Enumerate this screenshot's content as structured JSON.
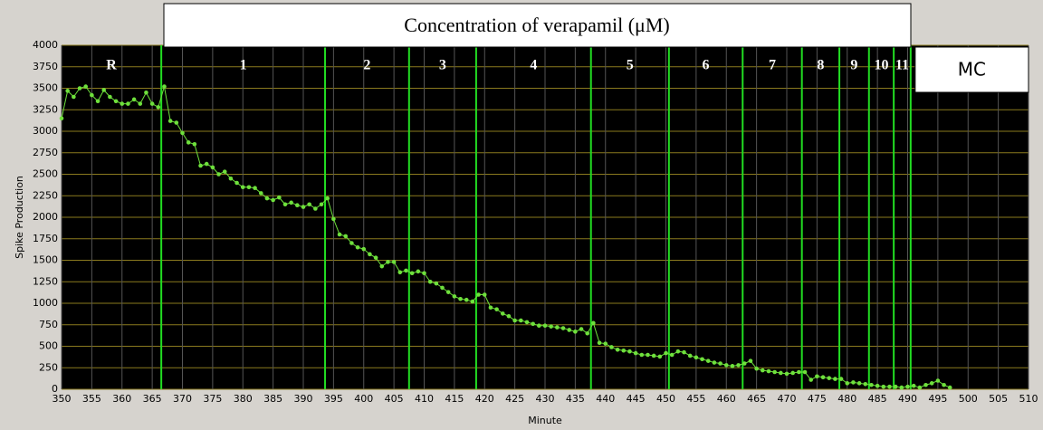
{
  "chart_data": {
    "type": "line",
    "title": "Concentration of verapamil (μM)",
    "x_label": "Minute",
    "y_label": "Spike Production",
    "xlim": [
      350,
      510
    ],
    "ylim": [
      0,
      4000
    ],
    "xticks": [
      350,
      355,
      360,
      365,
      370,
      375,
      380,
      385,
      390,
      395,
      400,
      405,
      410,
      415,
      420,
      425,
      430,
      435,
      440,
      445,
      450,
      455,
      460,
      465,
      470,
      475,
      480,
      485,
      490,
      495,
      500,
      505,
      510
    ],
    "yticks": [
      0,
      250,
      500,
      750,
      1000,
      1250,
      1500,
      1750,
      2000,
      2250,
      2500,
      2750,
      3000,
      3250,
      3500,
      3750,
      4000
    ],
    "grid": true,
    "color": "#6ee03c",
    "boundary_color": "#22dd22",
    "phase_boundaries": [
      366.5,
      393.6,
      407.5,
      418.6,
      437.6,
      450.5,
      462.7,
      472.5,
      478.7,
      483.6,
      487.7,
      490.5
    ],
    "phase_labels": [
      "R",
      "1",
      "2",
      "3",
      "4",
      "5",
      "6",
      "7",
      "8",
      "9",
      "10",
      "11",
      "MC"
    ],
    "x": [
      350,
      351,
      352,
      353,
      354,
      355,
      356,
      357,
      358,
      359,
      360,
      361,
      362,
      363,
      364,
      365,
      366,
      367,
      368,
      369,
      370,
      371,
      372,
      373,
      374,
      375,
      376,
      377,
      378,
      379,
      380,
      381,
      382,
      383,
      384,
      385,
      386,
      387,
      388,
      389,
      390,
      391,
      392,
      393,
      394,
      395,
      396,
      397,
      398,
      399,
      400,
      401,
      402,
      403,
      404,
      405,
      406,
      407,
      408,
      409,
      410,
      411,
      412,
      413,
      414,
      415,
      416,
      417,
      418,
      419,
      420,
      421,
      422,
      423,
      424,
      425,
      426,
      427,
      428,
      429,
      430,
      431,
      432,
      433,
      434,
      435,
      436,
      437,
      438,
      439,
      440,
      441,
      442,
      443,
      444,
      445,
      446,
      447,
      448,
      449,
      450,
      451,
      452,
      453,
      454,
      455,
      456,
      457,
      458,
      459,
      460,
      461,
      462,
      463,
      464,
      465,
      466,
      467,
      468,
      469,
      470,
      471,
      472,
      473,
      474,
      475,
      476,
      477,
      478,
      479,
      480,
      481,
      482,
      483,
      484,
      485,
      486,
      487,
      488,
      489,
      490,
      491,
      492,
      493,
      494,
      495,
      496,
      497
    ],
    "values": [
      3150,
      3470,
      3400,
      3500,
      3520,
      3420,
      3350,
      3480,
      3400,
      3350,
      3320,
      3320,
      3370,
      3320,
      3450,
      3320,
      3280,
      3520,
      3120,
      3100,
      2980,
      2870,
      2850,
      2600,
      2620,
      2580,
      2500,
      2530,
      2450,
      2400,
      2350,
      2350,
      2340,
      2280,
      2220,
      2200,
      2230,
      2150,
      2170,
      2140,
      2120,
      2150,
      2100,
      2150,
      2220,
      1980,
      1800,
      1780,
      1700,
      1650,
      1630,
      1570,
      1530,
      1430,
      1480,
      1480,
      1360,
      1380,
      1350,
      1370,
      1350,
      1250,
      1230,
      1180,
      1130,
      1080,
      1050,
      1040,
      1020,
      1100,
      1100,
      950,
      930,
      880,
      850,
      800,
      800,
      780,
      760,
      740,
      740,
      730,
      720,
      710,
      690,
      670,
      700,
      650,
      770,
      540,
      530,
      490,
      460,
      450,
      440,
      420,
      400,
      400,
      390,
      380,
      420,
      400,
      440,
      430,
      390,
      370,
      350,
      330,
      310,
      300,
      280,
      270,
      280,
      300,
      330,
      240,
      220,
      210,
      200,
      190,
      180,
      190,
      200,
      200,
      110,
      150,
      140,
      130,
      120,
      120,
      70,
      80,
      70,
      60,
      50,
      40,
      30,
      30,
      30,
      20,
      30,
      40,
      20,
      50,
      70,
      100,
      50,
      20
    ]
  }
}
